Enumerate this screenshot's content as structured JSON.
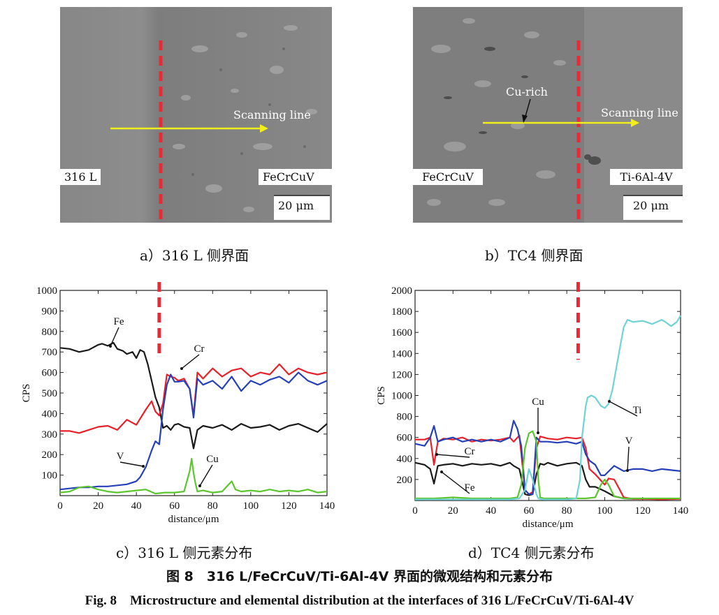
{
  "panel_a": {
    "caption": "a）316 L 侧界面",
    "scan_label": "Scanning line",
    "left_label": "316 L",
    "right_label": "FeCrCuV",
    "scale_bar": "20 μm"
  },
  "panel_b": {
    "caption": "b）TC4 侧界面",
    "scan_label": "Scanning line",
    "cu_label": "Cu-rich",
    "left_label": "FeCrCuV",
    "right_label": "Ti-6Al-4V",
    "scale_bar": "20 μm"
  },
  "colors": {
    "Fe": "#1a1a1a",
    "Cr": "#e8202a",
    "V": "#2540b8",
    "Cu": "#5cc62e",
    "Ti": "#6fd3d6",
    "interface": "#e82a36",
    "scan": "#f2ee1a"
  },
  "figure": {
    "title_cn": "图 8　316 L/FeCrCuV/Ti-6Al-4V 界面的微观结构和元素分布",
    "title_en": "Fig. 8　Microstructure and elemental distribution at the interfaces of 316 L/FeCrCuV/Ti-6Al-4V"
  },
  "chart_data": [
    {
      "type": "line",
      "caption": "c）316 L 侧元素分布",
      "xlabel": "distance/μm",
      "ylabel": "CPS",
      "xlim": [
        0,
        140
      ],
      "ylim": [
        0,
        1000
      ],
      "xticks": [
        0,
        20,
        40,
        60,
        80,
        100,
        120,
        140
      ],
      "yticks": [
        100,
        200,
        300,
        400,
        500,
        600,
        700,
        800,
        900,
        1000
      ],
      "interface_x": 52,
      "series": [
        {
          "name": "Fe",
          "color": "#1a1a1a",
          "x": [
            0,
            5,
            10,
            15,
            20,
            22,
            25,
            28,
            30,
            33,
            35,
            38,
            40,
            42,
            44,
            46,
            48,
            50,
            52,
            54,
            56,
            58,
            60,
            62,
            65,
            68,
            70,
            72,
            75,
            80,
            85,
            90,
            95,
            100,
            105,
            110,
            115,
            120,
            125,
            130,
            135,
            140
          ],
          "y": [
            720,
            715,
            700,
            710,
            735,
            740,
            730,
            745,
            715,
            705,
            690,
            700,
            670,
            710,
            700,
            640,
            560,
            480,
            430,
            330,
            340,
            320,
            345,
            350,
            335,
            330,
            230,
            320,
            340,
            330,
            345,
            320,
            350,
            330,
            335,
            345,
            320,
            340,
            350,
            330,
            310,
            350
          ]
        },
        {
          "name": "Cr",
          "color": "#e8202a",
          "x": [
            0,
            5,
            10,
            15,
            20,
            25,
            30,
            35,
            40,
            45,
            48,
            50,
            52,
            54,
            56,
            58,
            60,
            62,
            65,
            68,
            70,
            72,
            75,
            80,
            85,
            90,
            95,
            100,
            105,
            110,
            115,
            120,
            125,
            130,
            135,
            140
          ],
          "y": [
            315,
            315,
            305,
            320,
            335,
            340,
            320,
            370,
            345,
            420,
            460,
            410,
            390,
            450,
            590,
            580,
            575,
            560,
            570,
            520,
            390,
            600,
            570,
            620,
            580,
            610,
            620,
            580,
            600,
            590,
            640,
            590,
            620,
            600,
            590,
            600
          ]
        },
        {
          "name": "V",
          "color": "#2540b8",
          "x": [
            0,
            5,
            10,
            15,
            20,
            25,
            30,
            35,
            40,
            42,
            45,
            48,
            50,
            52,
            54,
            56,
            58,
            60,
            62,
            65,
            68,
            70,
            72,
            75,
            80,
            85,
            90,
            95,
            100,
            105,
            110,
            115,
            120,
            125,
            130,
            135,
            140
          ],
          "y": [
            30,
            35,
            40,
            40,
            45,
            45,
            50,
            55,
            70,
            90,
            140,
            220,
            265,
            250,
            420,
            540,
            590,
            555,
            555,
            560,
            520,
            380,
            570,
            540,
            560,
            520,
            580,
            510,
            560,
            540,
            565,
            580,
            550,
            600,
            560,
            540,
            560
          ]
        },
        {
          "name": "Cu",
          "color": "#5cc62e",
          "x": [
            0,
            5,
            10,
            15,
            20,
            25,
            30,
            35,
            40,
            45,
            50,
            55,
            60,
            65,
            68,
            69,
            70,
            71,
            72,
            75,
            80,
            85,
            88,
            90,
            92,
            95,
            100,
            105,
            110,
            115,
            120,
            125,
            130,
            135,
            140
          ],
          "y": [
            15,
            20,
            40,
            45,
            30,
            20,
            15,
            20,
            25,
            30,
            10,
            15,
            15,
            20,
            120,
            180,
            110,
            60,
            20,
            25,
            15,
            20,
            50,
            70,
            30,
            20,
            25,
            20,
            30,
            20,
            25,
            20,
            30,
            15,
            20
          ]
        }
      ],
      "annotations": [
        {
          "text": "Fe",
          "series": "Fe"
        },
        {
          "text": "Cr",
          "series": "Cr"
        },
        {
          "text": "V",
          "series": "V"
        },
        {
          "text": "Cu",
          "series": "Cu"
        }
      ]
    },
    {
      "type": "line",
      "caption": "d）TC4 侧元素分布",
      "xlabel": "distance/μm",
      "ylabel": "CPS",
      "xlim": [
        0,
        140
      ],
      "ylim": [
        0,
        2000
      ],
      "xticks": [
        0,
        20,
        40,
        60,
        80,
        100,
        120,
        140
      ],
      "yticks": [
        200,
        400,
        600,
        800,
        1000,
        1200,
        1400,
        1600,
        1800,
        2000
      ],
      "interface_x": 86,
      "series": [
        {
          "name": "Fe",
          "color": "#1a1a1a",
          "x": [
            0,
            5,
            8,
            10,
            12,
            15,
            20,
            25,
            30,
            35,
            40,
            45,
            50,
            52,
            55,
            58,
            60,
            62,
            64,
            66,
            68,
            70,
            75,
            80,
            85,
            88,
            90,
            92,
            95,
            100,
            105,
            110,
            115,
            120,
            125,
            130,
            135,
            140
          ],
          "y": [
            360,
            340,
            300,
            160,
            330,
            340,
            350,
            330,
            350,
            340,
            350,
            330,
            360,
            330,
            300,
            60,
            50,
            60,
            250,
            350,
            340,
            360,
            330,
            350,
            360,
            330,
            200,
            130,
            130,
            90,
            40,
            20,
            15,
            15,
            15,
            10,
            15,
            20
          ]
        },
        {
          "name": "Cr",
          "color": "#e8202a",
          "x": [
            0,
            5,
            8,
            10,
            12,
            15,
            20,
            25,
            30,
            35,
            40,
            45,
            50,
            52,
            55,
            58,
            60,
            62,
            64,
            66,
            68,
            70,
            75,
            80,
            85,
            88,
            90,
            92,
            95,
            100,
            102,
            105,
            108,
            110,
            115,
            120,
            130,
            140
          ],
          "y": [
            580,
            580,
            600,
            340,
            560,
            590,
            580,
            600,
            560,
            580,
            570,
            580,
            600,
            560,
            620,
            100,
            60,
            80,
            500,
            610,
            600,
            590,
            580,
            600,
            590,
            600,
            500,
            300,
            250,
            150,
            210,
            200,
            100,
            30,
            15,
            15,
            10,
            15
          ]
        },
        {
          "name": "V",
          "color": "#2540b8",
          "x": [
            0,
            5,
            8,
            10,
            12,
            15,
            20,
            25,
            30,
            35,
            40,
            45,
            50,
            52,
            54,
            56,
            58,
            60,
            62,
            64,
            66,
            68,
            70,
            75,
            80,
            85,
            88,
            90,
            92,
            95,
            98,
            100,
            105,
            110,
            115,
            120,
            125,
            130,
            135,
            140
          ],
          "y": [
            540,
            520,
            600,
            710,
            560,
            580,
            600,
            560,
            580,
            560,
            580,
            560,
            600,
            760,
            680,
            520,
            100,
            60,
            60,
            600,
            560,
            560,
            560,
            550,
            560,
            540,
            560,
            440,
            380,
            340,
            240,
            240,
            330,
            280,
            300,
            300,
            280,
            300,
            290,
            280
          ]
        },
        {
          "name": "Cu",
          "color": "#5cc62e",
          "x": [
            0,
            5,
            10,
            20,
            30,
            40,
            50,
            54,
            56,
            58,
            60,
            62,
            64,
            65,
            66,
            68,
            70,
            75,
            80,
            85,
            90,
            95,
            98,
            100,
            102,
            105,
            110,
            120,
            130,
            140
          ],
          "y": [
            20,
            20,
            20,
            30,
            20,
            20,
            20,
            30,
            150,
            500,
            640,
            660,
            560,
            200,
            30,
            20,
            20,
            20,
            20,
            20,
            20,
            30,
            150,
            200,
            150,
            40,
            20,
            20,
            20,
            20
          ]
        },
        {
          "name": "Ti",
          "color": "#6fd3d6",
          "x": [
            0,
            10,
            20,
            30,
            40,
            50,
            55,
            58,
            60,
            62,
            64,
            65,
            66,
            68,
            70,
            75,
            80,
            85,
            87,
            88,
            90,
            91,
            93,
            95,
            98,
            100,
            102,
            104,
            106,
            108,
            110,
            112,
            115,
            120,
            125,
            130,
            132,
            135,
            138,
            140
          ],
          "y": [
            10,
            10,
            10,
            10,
            10,
            10,
            20,
            100,
            300,
            200,
            60,
            20,
            15,
            10,
            10,
            10,
            10,
            20,
            200,
            600,
            900,
            980,
            1000,
            980,
            900,
            880,
            920,
            1050,
            1250,
            1450,
            1650,
            1720,
            1700,
            1710,
            1680,
            1720,
            1700,
            1660,
            1700,
            1760
          ]
        }
      ],
      "annotations": [
        {
          "text": "Cr",
          "series": "Cr"
        },
        {
          "text": "Fe",
          "series": "Fe"
        },
        {
          "text": "Cu",
          "series": "Cu"
        },
        {
          "text": "Ti",
          "series": "Ti"
        },
        {
          "text": "V",
          "series": "V"
        }
      ]
    }
  ]
}
